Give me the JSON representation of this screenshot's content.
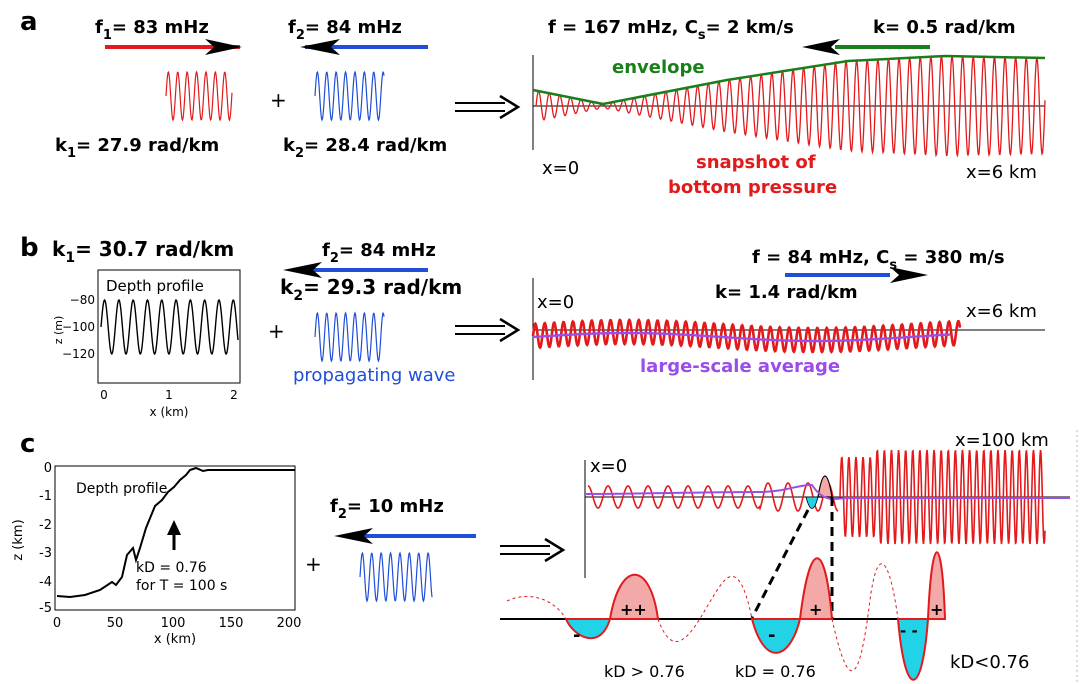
{
  "colors": {
    "red": "#e31a1c",
    "blue": "#1f4fd8",
    "green": "#1a7f1a",
    "purple": "#9b4dea",
    "cyan": "#22d3e8",
    "pink": "#f4a9a9",
    "black": "#000000"
  },
  "panel_a": {
    "letter": "a",
    "f1": "f",
    "f1_sub": "1",
    "f1_val": "= 83 mHz",
    "f2": "f",
    "f2_sub": "2",
    "f2_val": "= 84 mHz",
    "k1": "k",
    "k1_sub": "1",
    "k1_val": "= 27.9 rad/km",
    "k2": "k",
    "k2_sub": "2",
    "k2_val": "= 28.4 rad/km",
    "plus": "+",
    "result_head": "f  = 167 mHz, C",
    "result_sub": "s",
    "result_tail": "= 2 km/s",
    "k_result": "k= 0.5 rad/km",
    "envelope_label": "envelope",
    "snapshot_line1": "snapshot of",
    "snapshot_line2": "bottom pressure",
    "x0": "x=0",
    "x6": "x=6 km"
  },
  "panel_b": {
    "letter": "b",
    "k1": "k",
    "k1_sub": "1",
    "k1_val": "= 30.7 rad/km",
    "f2": "f",
    "f2_sub": "2",
    "f2_val": "= 84 mHz",
    "k2": "k",
    "k2_sub": "2",
    "k2_val": "= 29.3 rad/km",
    "plus": "+",
    "propagating_label": "propagating wave",
    "result_head": "f  = 84 mHz, C",
    "result_sub": "s",
    "result_tail": " = 380 m/s",
    "k_result": "k= 1.4 rad/km",
    "x0": "x=0",
    "x6": "x=6 km",
    "average_label": "large-scale average",
    "inset": {
      "title": "Depth profile",
      "ylabel": "z (m)",
      "xlabel": "x (km)",
      "yticks": [
        "−80",
        "−100",
        "−120"
      ],
      "xticks": [
        "0",
        "1",
        "2"
      ]
    }
  },
  "panel_c": {
    "letter": "c",
    "f2": "f",
    "f2_sub": "2",
    "f2_val": "= 10 mHz",
    "plus": "+",
    "x0": "x=0",
    "x100": "x=100 km",
    "kd_gt": "kD > 0.76",
    "kd_eq": "kD = 0.76",
    "kd_lt": "kD<0.76",
    "signs": [
      "-",
      "++",
      "-",
      "+",
      "- -",
      "+"
    ],
    "inset": {
      "title": "Depth profile",
      "annot_line1": "kD = 0.76",
      "annot_line2": "for T = 100 s",
      "ylabel": "z (km)",
      "xlabel": "x (km)",
      "yticks": [
        "0",
        "-1",
        "-2",
        "-3",
        "-4",
        "-5"
      ],
      "xticks": [
        "0",
        "50",
        "100",
        "150",
        "200"
      ]
    }
  }
}
